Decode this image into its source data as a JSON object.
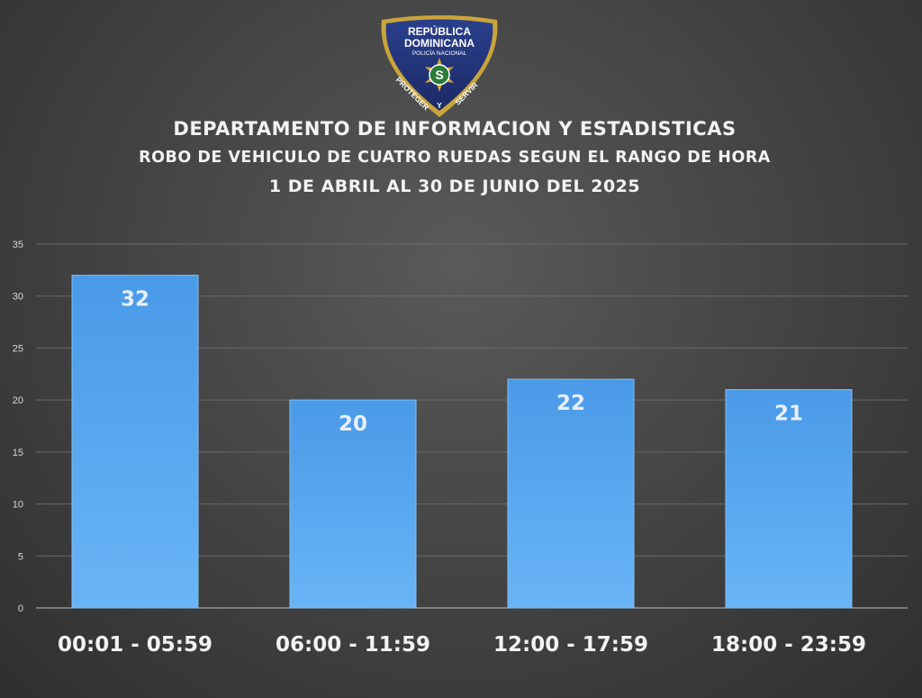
{
  "header": {
    "title": "DEPARTAMENTO DE INFORMACION Y ESTADISTICAS",
    "subtitle": "ROBO DE VEHICULO DE CUATRO RUEDAS SEGUN EL RANGO DE HORA",
    "period": "1 DE ABRIL AL 30 DE JUNIO DEL 2025"
  },
  "logo": {
    "top_text": "REPÚBLICA DOMINICANA",
    "line1": "REPÚBLICA",
    "line2": "DOMINICANA",
    "line3": "POLICÍA NACIONAL",
    "bottom_left": "PROTEGER",
    "bottom_mid": "Y",
    "bottom_right": "SERVIR"
  },
  "chart_data": {
    "type": "bar",
    "categories": [
      "00:01 - 05:59",
      "06:00 - 11:59",
      "12:00 - 17:59",
      "18:00 - 23:59"
    ],
    "values": [
      32,
      20,
      22,
      21
    ],
    "ylim": [
      0,
      35
    ],
    "yticks": [
      0,
      5,
      10,
      15,
      20,
      25,
      30,
      35
    ],
    "grid": true,
    "data_labels": true,
    "bar_color": "#5aa8ee"
  }
}
